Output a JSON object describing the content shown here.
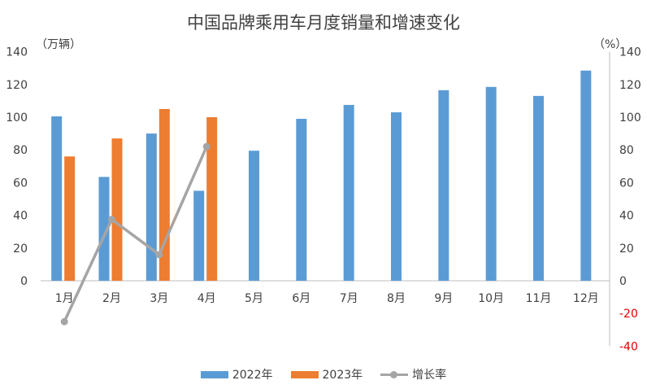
{
  "chart_data": {
    "type": "bar",
    "title": "中国品牌乘用车月度销量和增速变化",
    "left_unit": "（万辆）",
    "right_unit": "（%）",
    "categories": [
      "1月",
      "2月",
      "3月",
      "4月",
      "5月",
      "6月",
      "7月",
      "8月",
      "9月",
      "10月",
      "11月",
      "12月"
    ],
    "series": [
      {
        "name": "2022年",
        "type": "bar",
        "color": "#5b9bd5",
        "values": [
          100.5,
          63.5,
          90,
          55,
          79.5,
          99,
          107.5,
          103,
          116.5,
          118.5,
          113,
          128.5
        ]
      },
      {
        "name": "2023年",
        "type": "bar",
        "color": "#ed7d31",
        "values": [
          76,
          87,
          105,
          100,
          null,
          null,
          null,
          null,
          null,
          null,
          null,
          null
        ]
      },
      {
        "name": "增长率",
        "type": "line",
        "axis": "right",
        "color": "#a5a5a5",
        "values": [
          -25,
          37.5,
          16,
          82,
          null,
          null,
          null,
          null,
          null,
          null,
          null,
          null
        ]
      }
    ],
    "left_axis": {
      "ylim": [
        0,
        140
      ],
      "ticks": [
        "0",
        "20",
        "40",
        "60",
        "80",
        "100",
        "120",
        "140"
      ]
    },
    "right_axis": {
      "ylim": [
        -40,
        140
      ],
      "ticks": [
        "-40",
        "-20",
        "0",
        "20",
        "40",
        "60",
        "80",
        "100",
        "120",
        "140"
      ]
    },
    "legend_position": "bottom",
    "grid": false
  }
}
